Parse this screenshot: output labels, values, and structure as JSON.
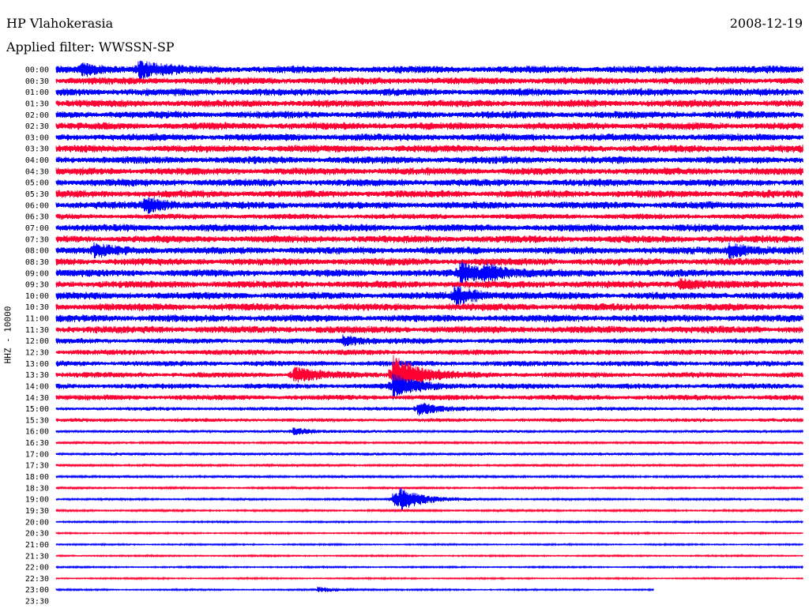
{
  "header": {
    "station": "HP Vlahokerasia",
    "date": "2008-12-19",
    "filter_label": "Applied filter: WWSSN-SP"
  },
  "channel_label": "HHZ - 10000",
  "colors": {
    "even_rows": "#0000ff",
    "odd_rows": "#ff0033"
  },
  "chart_data": {
    "type": "line",
    "title": "HP Vlahokerasia",
    "subtitle": "Applied filter: WWSSN-SP",
    "ylabel": "HHZ - 10000",
    "y_tick_labels": [
      "00:00",
      "00:30",
      "01:00",
      "01:30",
      "02:00",
      "02:30",
      "03:00",
      "03:30",
      "04:00",
      "04:30",
      "05:00",
      "05:30",
      "06:00",
      "06:30",
      "07:00",
      "07:30",
      "08:00",
      "08:30",
      "09:00",
      "09:30",
      "10:00",
      "10:30",
      "11:00",
      "11:30",
      "12:00",
      "12:30",
      "13:00",
      "13:30",
      "14:00",
      "14:30",
      "15:00",
      "15:30",
      "16:00",
      "16:30",
      "17:00",
      "17:30",
      "18:00",
      "18:30",
      "19:00",
      "19:30",
      "20:00",
      "20:30",
      "21:00",
      "21:30",
      "22:00",
      "22:30",
      "23:00",
      "23:30"
    ],
    "trace_extent_minutes": 30,
    "last_trace_minutes_recorded": 24,
    "noise_amplitude": [
      4,
      4,
      4,
      4,
      4,
      4,
      4,
      4,
      4,
      4,
      4,
      4,
      4,
      3,
      4,
      4,
      4,
      4,
      4,
      4,
      4,
      4,
      4,
      4,
      3,
      3,
      3,
      3,
      3,
      3,
      2,
      2,
      1.5,
      1.2,
      1.5,
      1.2,
      1.2,
      1,
      1,
      1,
      0.8,
      0.8,
      0.8,
      0.8,
      0.8,
      0.8,
      0.8,
      0.8
    ],
    "events": [
      {
        "row": "00:00",
        "minute": 1.0,
        "amplitude": 6
      },
      {
        "row": "00:00",
        "minute": 3.3,
        "amplitude": 10
      },
      {
        "row": "06:00",
        "minute": 3.5,
        "amplitude": 9
      },
      {
        "row": "08:00",
        "minute": 1.5,
        "amplitude": 6
      },
      {
        "row": "08:00",
        "minute": 27.0,
        "amplitude": 8
      },
      {
        "row": "09:00",
        "minute": 16.2,
        "amplitude": 12
      },
      {
        "row": "09:00",
        "minute": 17.2,
        "amplitude": 8
      },
      {
        "row": "09:30",
        "minute": 25.0,
        "amplitude": 6
      },
      {
        "row": "10:00",
        "minute": 16.0,
        "amplitude": 10
      },
      {
        "row": "12:00",
        "minute": 11.5,
        "amplitude": 6
      },
      {
        "row": "13:30",
        "minute": 9.5,
        "amplitude": 10
      },
      {
        "row": "13:30",
        "minute": 13.5,
        "amplitude": 28
      },
      {
        "row": "14:00",
        "minute": 13.5,
        "amplitude": 14
      },
      {
        "row": "15:00",
        "minute": 14.5,
        "amplitude": 8
      },
      {
        "row": "16:00",
        "minute": 9.5,
        "amplitude": 4
      },
      {
        "row": "19:00",
        "minute": 13.5,
        "amplitude": 8
      },
      {
        "row": "19:00",
        "minute": 13.8,
        "amplitude": 10
      },
      {
        "row": "23:00",
        "minute": 10.5,
        "amplitude": 3
      }
    ]
  }
}
